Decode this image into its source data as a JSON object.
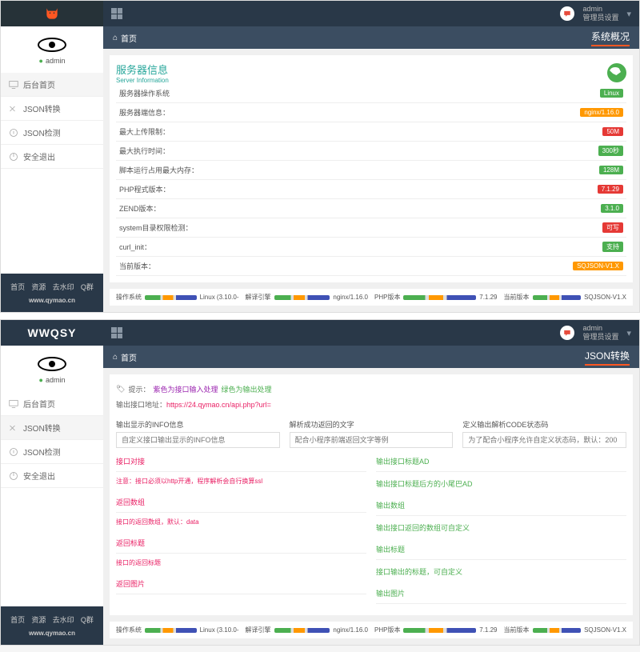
{
  "colors": {
    "header": "#293848",
    "sub": "#3b4d61",
    "accent": "#ff5722",
    "teal": "#26a69a"
  },
  "top": {
    "user": "admin",
    "role": "管理员设置"
  },
  "sidebar": {
    "admin": "admin",
    "items": [
      {
        "label": "后台首页"
      },
      {
        "label": "JSON转换"
      },
      {
        "label": "JSON检测"
      },
      {
        "label": "安全退出"
      }
    ]
  },
  "footer": {
    "links": [
      "首页",
      "资源",
      "去水印",
      "Q群"
    ],
    "url": "www.qymao.cn"
  },
  "p1": {
    "logo_type": "cat",
    "breadcrumb": "首页",
    "title": "系统概况",
    "card": "服务器信息",
    "card_sub": "Server Information",
    "rows": [
      {
        "k": "服务器操作系统",
        "v": "Linux",
        "cls": "b-linux"
      },
      {
        "k": "服务器端信息：",
        "v": "nginx/1.16.0",
        "cls": "b-nginx"
      },
      {
        "k": "最大上传限制：",
        "v": "50M",
        "cls": "b-50m"
      },
      {
        "k": "最大执行时间：",
        "v": "300秒",
        "cls": "b-300"
      },
      {
        "k": "脚本运行占用最大内存：",
        "v": "128M",
        "cls": "b-128m"
      },
      {
        "k": "PHP程式版本：",
        "v": "7.1.29",
        "cls": "b-php"
      },
      {
        "k": "ZEND版本：",
        "v": "3.1.0",
        "cls": "b-zend"
      },
      {
        "k": "system目录权限检测：",
        "v": "可写",
        "cls": "b-red"
      },
      {
        "k": "curl_init：",
        "v": "支持",
        "cls": "b-green"
      },
      {
        "k": "当前版本：",
        "v": "SQJSON-V1.X",
        "cls": "b-ver"
      }
    ]
  },
  "status": [
    {
      "k": "操作系统",
      "v": "Linux (3.10.0-"
    },
    {
      "k": "解译引擎",
      "v": "nginx/1.16.0"
    },
    {
      "k": "PHP版本",
      "v": "7.1.29"
    },
    {
      "k": "当前版本",
      "v": "SQJSON-V1.X"
    }
  ],
  "p2": {
    "logo": "WWQSY",
    "breadcrumb": "首页",
    "title": "JSON转换",
    "tip_pre": "提示：",
    "tip_purple": "紫色为接口输入处理",
    "tip_green": "绿色为输出处理",
    "url_label": "输出接口地址：",
    "url": "https://24.qymao.cn/api.php?url=",
    "cols": [
      {
        "label": "输出显示的INFO信息",
        "ph": "自定义接口输出显示的INFO信息"
      },
      {
        "label": "解析成功返回的文字",
        "ph": "配合小程序前端返回文字等例\"解析成功\""
      },
      {
        "label": "定义输出解析CODE状态码",
        "ph": "为了配合小程序允许自定义状态码，默认：200"
      }
    ],
    "left": {
      "h1": "接口对接",
      "note": "注意：接口必须以http开通，程序解析会自行换算ssl",
      "h2": "返回数组",
      "note2": "接口的返回数组，默认：data",
      "h3": "返回标题",
      "note3": "接口的返回标题",
      "h4": "返回图片"
    },
    "right": {
      "h1": "输出接口标题AD",
      "sub1": "输出接口标题后方的小尾巴AD",
      "h2": "输出数组",
      "sub2": "输出接口返回的数组可自定义",
      "h3": "输出标题",
      "sub3": "接口输出的标题，可自定义",
      "h4": "输出图片"
    }
  }
}
